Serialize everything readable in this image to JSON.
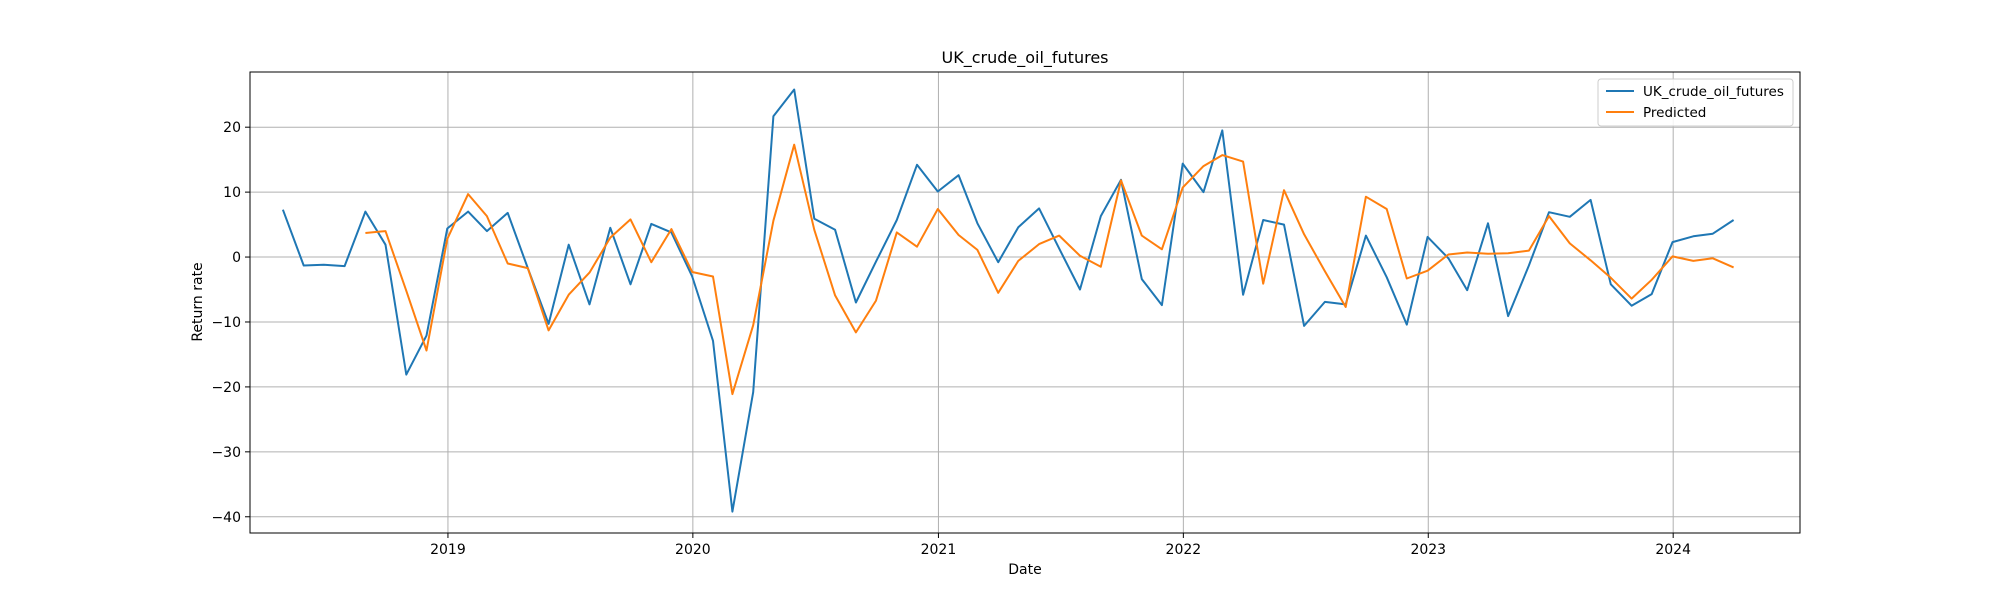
{
  "chart_data": {
    "type": "line",
    "title": "UK_crude_oil_futures",
    "xlabel": "Date",
    "ylabel": "Return rate",
    "xlim": [
      "2018-03-12",
      "2024-07-08"
    ],
    "ylim": [
      -42.5,
      28.5
    ],
    "x_ticks": [
      {
        "value": "2019-01-01",
        "label": "2019"
      },
      {
        "value": "2020-01-01",
        "label": "2020"
      },
      {
        "value": "2021-01-01",
        "label": "2021"
      },
      {
        "value": "2022-01-01",
        "label": "2022"
      },
      {
        "value": "2023-01-01",
        "label": "2023"
      },
      {
        "value": "2024-01-01",
        "label": "2024"
      }
    ],
    "y_ticks": [
      20,
      10,
      0,
      -10,
      -20,
      -30,
      -40
    ],
    "y_tick_labels": [
      "20",
      "10",
      "0",
      "−10",
      "−20",
      "−30",
      "−40"
    ],
    "grid": true,
    "legend_position": "top-right",
    "series": [
      {
        "name": "UK_crude_oil_futures",
        "color": "#1f77b4",
        "points": [
          [
            "2018-04-30",
            7.3
          ],
          [
            "2018-05-31",
            -1.3
          ],
          [
            "2018-06-30",
            -1.2
          ],
          [
            "2018-07-31",
            -1.4
          ],
          [
            "2018-08-31",
            7.0
          ],
          [
            "2018-09-30",
            1.9
          ],
          [
            "2018-10-31",
            -18.1
          ],
          [
            "2018-11-30",
            -12.1
          ],
          [
            "2018-12-31",
            4.4
          ],
          [
            "2019-01-31",
            7.0
          ],
          [
            "2019-02-28",
            4.0
          ],
          [
            "2019-03-31",
            6.8
          ],
          [
            "2019-04-30",
            -1.7
          ],
          [
            "2019-05-31",
            -10.3
          ],
          [
            "2019-06-30",
            1.9
          ],
          [
            "2019-07-31",
            -7.3
          ],
          [
            "2019-08-31",
            4.5
          ],
          [
            "2019-09-30",
            -4.2
          ],
          [
            "2019-10-31",
            5.1
          ],
          [
            "2019-11-30",
            3.8
          ],
          [
            "2019-12-31",
            -3.0
          ],
          [
            "2020-01-31",
            -12.9
          ],
          [
            "2020-02-29",
            -39.2
          ],
          [
            "2020-03-31",
            -20.8
          ],
          [
            "2020-04-30",
            21.7
          ],
          [
            "2020-05-31",
            25.8
          ],
          [
            "2020-06-30",
            5.9
          ],
          [
            "2020-07-31",
            4.2
          ],
          [
            "2020-08-31",
            -7.0
          ],
          [
            "2020-09-30",
            -0.7
          ],
          [
            "2020-10-31",
            5.7
          ],
          [
            "2020-11-30",
            14.2
          ],
          [
            "2020-12-31",
            10.1
          ],
          [
            "2021-01-31",
            12.6
          ],
          [
            "2021-02-28",
            5.2
          ],
          [
            "2021-03-31",
            -0.8
          ],
          [
            "2021-04-30",
            4.6
          ],
          [
            "2021-05-31",
            7.5
          ],
          [
            "2021-06-30",
            1.3
          ],
          [
            "2021-07-31",
            -5.0
          ],
          [
            "2021-08-31",
            6.3
          ],
          [
            "2021-09-30",
            11.9
          ],
          [
            "2021-10-31",
            -3.4
          ],
          [
            "2021-11-30",
            -7.4
          ],
          [
            "2021-12-31",
            14.4
          ],
          [
            "2022-01-31",
            10.0
          ],
          [
            "2022-02-28",
            19.5
          ],
          [
            "2022-03-31",
            -5.8
          ],
          [
            "2022-04-30",
            5.7
          ],
          [
            "2022-05-31",
            5.0
          ],
          [
            "2022-06-30",
            -10.6
          ],
          [
            "2022-07-31",
            -6.9
          ],
          [
            "2022-08-31",
            -7.3
          ],
          [
            "2022-09-30",
            3.3
          ],
          [
            "2022-10-31",
            -3.1
          ],
          [
            "2022-11-30",
            -10.4
          ],
          [
            "2022-12-31",
            3.1
          ],
          [
            "2023-01-31",
            -0.2
          ],
          [
            "2023-02-28",
            -5.1
          ],
          [
            "2023-03-31",
            5.2
          ],
          [
            "2023-04-30",
            -9.1
          ],
          [
            "2023-05-31",
            -1.3
          ],
          [
            "2023-06-30",
            6.9
          ],
          [
            "2023-07-31",
            6.2
          ],
          [
            "2023-08-31",
            8.8
          ],
          [
            "2023-09-30",
            -4.2
          ],
          [
            "2023-10-31",
            -7.5
          ],
          [
            "2023-11-30",
            -5.7
          ],
          [
            "2023-12-31",
            2.3
          ],
          [
            "2024-01-31",
            3.2
          ],
          [
            "2024-02-29",
            3.6
          ],
          [
            "2024-03-31",
            5.7
          ]
        ]
      },
      {
        "name": "Predicted",
        "color": "#ff7f0e",
        "points": [
          [
            "2018-08-31",
            3.7
          ],
          [
            "2018-09-30",
            4.0
          ],
          [
            "2018-10-31",
            -5.2
          ],
          [
            "2018-11-30",
            -14.4
          ],
          [
            "2018-12-31",
            2.8
          ],
          [
            "2019-01-31",
            9.7
          ],
          [
            "2019-02-28",
            6.3
          ],
          [
            "2019-03-31",
            -1.0
          ],
          [
            "2019-04-30",
            -1.7
          ],
          [
            "2019-05-31",
            -11.3
          ],
          [
            "2019-06-30",
            -5.8
          ],
          [
            "2019-07-31",
            -2.4
          ],
          [
            "2019-08-31",
            3.0
          ],
          [
            "2019-09-30",
            5.8
          ],
          [
            "2019-10-31",
            -0.8
          ],
          [
            "2019-11-30",
            4.3
          ],
          [
            "2019-12-31",
            -2.3
          ],
          [
            "2020-01-31",
            -3.0
          ],
          [
            "2020-02-29",
            -21.1
          ],
          [
            "2020-03-31",
            -10.5
          ],
          [
            "2020-04-30",
            5.6
          ],
          [
            "2020-05-31",
            17.3
          ],
          [
            "2020-06-30",
            4.2
          ],
          [
            "2020-07-31",
            -5.9
          ],
          [
            "2020-08-31",
            -11.6
          ],
          [
            "2020-09-30",
            -6.7
          ],
          [
            "2020-10-31",
            3.8
          ],
          [
            "2020-11-30",
            1.6
          ],
          [
            "2020-12-31",
            7.4
          ],
          [
            "2021-01-31",
            3.4
          ],
          [
            "2021-02-28",
            1.1
          ],
          [
            "2021-03-31",
            -5.5
          ],
          [
            "2021-04-30",
            -0.6
          ],
          [
            "2021-05-31",
            2.0
          ],
          [
            "2021-06-30",
            3.3
          ],
          [
            "2021-07-31",
            0.2
          ],
          [
            "2021-08-31",
            -1.5
          ],
          [
            "2021-09-30",
            11.8
          ],
          [
            "2021-10-31",
            3.3
          ],
          [
            "2021-11-30",
            1.2
          ],
          [
            "2021-12-31",
            10.7
          ],
          [
            "2022-01-31",
            14.0
          ],
          [
            "2022-02-28",
            15.7
          ],
          [
            "2022-03-31",
            14.7
          ],
          [
            "2022-04-30",
            -4.1
          ],
          [
            "2022-05-31",
            10.3
          ],
          [
            "2022-06-30",
            3.5
          ],
          [
            "2022-07-31",
            -2.2
          ],
          [
            "2022-08-31",
            -7.7
          ],
          [
            "2022-09-30",
            9.3
          ],
          [
            "2022-10-31",
            7.4
          ],
          [
            "2022-11-30",
            -3.3
          ],
          [
            "2022-12-31",
            -2.1
          ],
          [
            "2023-01-31",
            0.4
          ],
          [
            "2023-02-28",
            0.7
          ],
          [
            "2023-03-31",
            0.5
          ],
          [
            "2023-04-30",
            0.6
          ],
          [
            "2023-05-31",
            1.0
          ],
          [
            "2023-06-30",
            6.3
          ],
          [
            "2023-07-31",
            2.1
          ],
          [
            "2023-08-31",
            -0.5
          ],
          [
            "2023-09-30",
            -3.2
          ],
          [
            "2023-10-31",
            -6.4
          ],
          [
            "2023-11-30",
            -3.5
          ],
          [
            "2023-12-31",
            0.1
          ],
          [
            "2024-01-31",
            -0.6
          ],
          [
            "2024-02-29",
            -0.2
          ],
          [
            "2024-03-31",
            -1.6
          ]
        ]
      }
    ]
  }
}
